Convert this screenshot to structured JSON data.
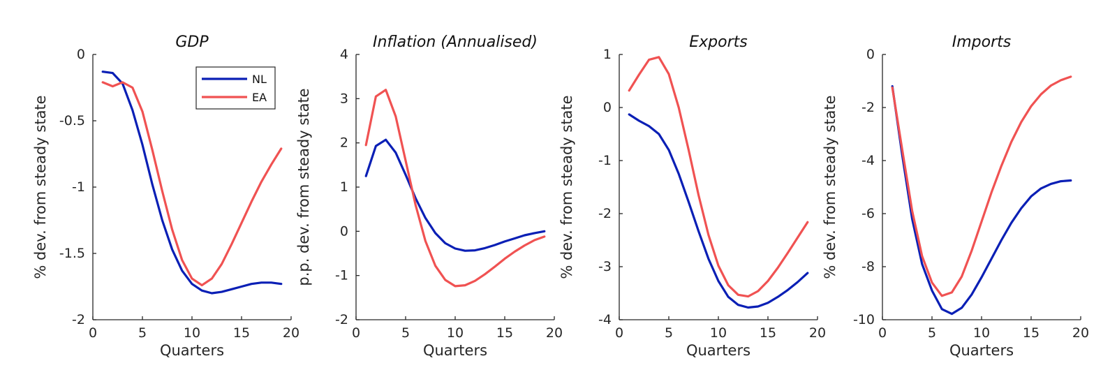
{
  "chart_data": [
    {
      "type": "line",
      "title": "GDP",
      "xlabel": "Quarters",
      "ylabel": "% dev. from steady state",
      "xlim": [
        0,
        20
      ],
      "ylim": [
        -2,
        0
      ],
      "xticks": [
        0,
        5,
        10,
        15,
        20
      ],
      "yticks": [
        -2,
        -1.5,
        -1,
        -0.5,
        0
      ],
      "legend": "top-right",
      "series": [
        {
          "name": "NL",
          "color": "#0a1fb5",
          "x": [
            1,
            2,
            3,
            4,
            5,
            6,
            7,
            8,
            9,
            10,
            11,
            12,
            13,
            14,
            15,
            16,
            17,
            18,
            19
          ],
          "y": [
            -0.13,
            -0.14,
            -0.22,
            -0.42,
            -0.68,
            -0.98,
            -1.25,
            -1.47,
            -1.63,
            -1.73,
            -1.78,
            -1.8,
            -1.79,
            -1.77,
            -1.75,
            -1.73,
            -1.72,
            -1.72,
            -1.73
          ]
        },
        {
          "name": "EA",
          "color": "#f05252",
          "x": [
            1,
            2,
            3,
            4,
            5,
            6,
            7,
            8,
            9,
            10,
            11,
            12,
            13,
            14,
            15,
            16,
            17,
            18,
            19
          ],
          "y": [
            -0.21,
            -0.24,
            -0.21,
            -0.25,
            -0.43,
            -0.72,
            -1.03,
            -1.32,
            -1.55,
            -1.69,
            -1.74,
            -1.69,
            -1.58,
            -1.43,
            -1.27,
            -1.11,
            -0.96,
            -0.83,
            -0.71
          ]
        }
      ]
    },
    {
      "type": "line",
      "title": "Inflation (Annualised)",
      "xlabel": "Quarters",
      "ylabel": "p.p. dev. from steady state",
      "xlim": [
        0,
        20
      ],
      "ylim": [
        -2,
        4
      ],
      "xticks": [
        0,
        5,
        10,
        15,
        20
      ],
      "yticks": [
        -2,
        -1,
        0,
        1,
        2,
        3,
        4
      ],
      "series": [
        {
          "name": "NL",
          "color": "#0a1fb5",
          "x": [
            1,
            2,
            3,
            4,
            5,
            6,
            7,
            8,
            9,
            10,
            11,
            12,
            13,
            14,
            15,
            16,
            17,
            18,
            19
          ],
          "y": [
            1.25,
            1.93,
            2.07,
            1.78,
            1.28,
            0.75,
            0.3,
            -0.04,
            -0.27,
            -0.39,
            -0.44,
            -0.43,
            -0.38,
            -0.31,
            -0.23,
            -0.16,
            -0.09,
            -0.04,
            0.0
          ]
        },
        {
          "name": "EA",
          "color": "#f05252",
          "x": [
            1,
            2,
            3,
            4,
            5,
            6,
            7,
            8,
            9,
            10,
            11,
            12,
            13,
            14,
            15,
            16,
            17,
            18,
            19
          ],
          "y": [
            1.95,
            3.05,
            3.2,
            2.6,
            1.6,
            0.6,
            -0.22,
            -0.78,
            -1.1,
            -1.24,
            -1.22,
            -1.12,
            -0.97,
            -0.8,
            -0.62,
            -0.46,
            -0.32,
            -0.2,
            -0.12
          ]
        }
      ]
    },
    {
      "type": "line",
      "title": "Exports",
      "xlabel": "Quarters",
      "ylabel": "% dev. from steady state",
      "xlim": [
        0,
        20
      ],
      "ylim": [
        -4,
        1
      ],
      "xticks": [
        0,
        5,
        10,
        15,
        20
      ],
      "yticks": [
        -4,
        -3,
        -2,
        -1,
        0,
        1
      ],
      "series": [
        {
          "name": "NL",
          "color": "#0a1fb5",
          "x": [
            1,
            2,
            3,
            4,
            5,
            6,
            7,
            8,
            9,
            10,
            11,
            12,
            13,
            14,
            15,
            16,
            17,
            18,
            19
          ],
          "y": [
            -0.13,
            -0.25,
            -0.35,
            -0.5,
            -0.8,
            -1.25,
            -1.78,
            -2.33,
            -2.85,
            -3.27,
            -3.57,
            -3.72,
            -3.77,
            -3.75,
            -3.68,
            -3.57,
            -3.44,
            -3.29,
            -3.12
          ]
        },
        {
          "name": "EA",
          "color": "#f05252",
          "x": [
            1,
            2,
            3,
            4,
            5,
            6,
            7,
            8,
            9,
            10,
            11,
            12,
            13,
            14,
            15,
            16,
            17,
            18,
            19
          ],
          "y": [
            0.32,
            0.62,
            0.9,
            0.95,
            0.63,
            0.0,
            -0.8,
            -1.65,
            -2.4,
            -2.98,
            -3.35,
            -3.53,
            -3.56,
            -3.46,
            -3.27,
            -3.02,
            -2.74,
            -2.45,
            -2.16
          ]
        }
      ]
    },
    {
      "type": "line",
      "title": "Imports",
      "xlabel": "Quarters",
      "ylabel": "% dev. from steady state",
      "xlim": [
        0,
        20
      ],
      "ylim": [
        -10,
        0
      ],
      "xticks": [
        0,
        5,
        10,
        15,
        20
      ],
      "yticks": [
        -10,
        -8,
        -6,
        -4,
        -2,
        0
      ],
      "series": [
        {
          "name": "NL",
          "color": "#0a1fb5",
          "x": [
            1,
            2,
            3,
            4,
            5,
            6,
            7,
            8,
            9,
            10,
            11,
            12,
            13,
            14,
            15,
            16,
            17,
            18,
            19
          ],
          "y": [
            -1.2,
            -3.8,
            -6.2,
            -7.9,
            -8.9,
            -9.6,
            -9.78,
            -9.55,
            -9.05,
            -8.4,
            -7.7,
            -7.0,
            -6.35,
            -5.8,
            -5.35,
            -5.05,
            -4.88,
            -4.78,
            -4.75
          ]
        },
        {
          "name": "EA",
          "color": "#f05252",
          "x": [
            1,
            2,
            3,
            4,
            5,
            6,
            7,
            8,
            9,
            10,
            11,
            12,
            13,
            14,
            15,
            16,
            17,
            18,
            19
          ],
          "y": [
            -1.25,
            -3.6,
            -5.9,
            -7.6,
            -8.6,
            -9.1,
            -8.97,
            -8.37,
            -7.4,
            -6.3,
            -5.2,
            -4.2,
            -3.3,
            -2.55,
            -1.95,
            -1.5,
            -1.17,
            -0.97,
            -0.84
          ]
        }
      ]
    }
  ]
}
